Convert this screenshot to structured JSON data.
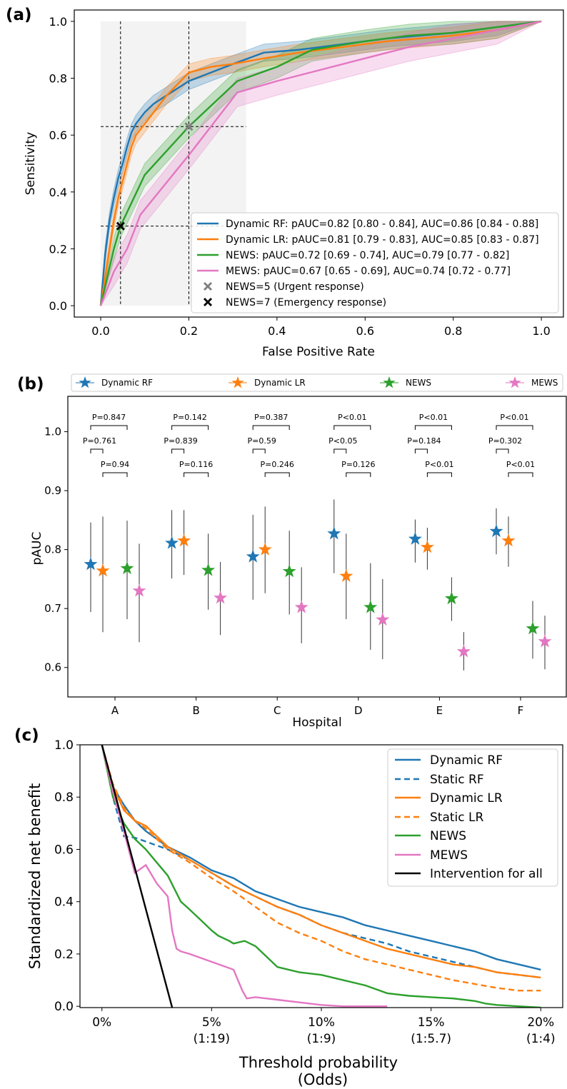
{
  "colors": {
    "dynamic_rf": "#1f77b4",
    "dynamic_lr": "#ff7f0e",
    "news": "#2ca02c",
    "mews": "#e377c2",
    "intervention": "#000000",
    "news5_marker": "#7f7f7f",
    "news7_marker": "#000000"
  },
  "chart_data": [
    {
      "panel_label": "(a)",
      "type": "line",
      "xlabel": "False Positive Rate",
      "ylabel": "Sensitivity",
      "xlim": [
        -0.06,
        1.05
      ],
      "ylim": [
        -0.04,
        1.04
      ],
      "xticks": [
        0.0,
        0.2,
        0.4,
        0.6,
        0.8,
        1.0
      ],
      "yticks": [
        0.0,
        0.2,
        0.4,
        0.6,
        0.8,
        1.0
      ],
      "xtick_labels": [
        "0.0",
        "0.2",
        "0.4",
        "0.6",
        "0.8",
        "1.0"
      ],
      "ytick_labels": [
        "0.0",
        "0.2",
        "0.4",
        "0.6",
        "0.8",
        "1.0"
      ],
      "legend_position": "lower-right",
      "shaded_region": {
        "x": [
          0.0,
          0.33
        ],
        "y": [
          0.0,
          1.0
        ]
      },
      "reference_lines": {
        "vertical": [
          0.045,
          0.2
        ],
        "horizontal": [
          0.28,
          0.63
        ]
      },
      "series": [
        {
          "name": "Dynamic RF: pAUC=0.82 [0.80 - 0.84], AUC=0.86 [0.84 - 0.88]",
          "key": "dynamic_rf",
          "x": [
            0,
            0.01,
            0.02,
            0.03,
            0.04,
            0.05,
            0.06,
            0.07,
            0.08,
            0.1,
            0.12,
            0.15,
            0.2,
            0.25,
            0.3,
            0.37,
            0.45,
            0.55,
            0.65,
            0.8,
            0.9,
            1.0
          ],
          "y": [
            0,
            0.18,
            0.3,
            0.38,
            0.45,
            0.5,
            0.56,
            0.61,
            0.64,
            0.68,
            0.71,
            0.74,
            0.79,
            0.82,
            0.85,
            0.89,
            0.9,
            0.92,
            0.94,
            0.96,
            0.98,
            1.0
          ],
          "band": 0.03
        },
        {
          "name": "Dynamic LR: pAUC=0.81 [0.79 - 0.83], AUC=0.85 [0.83 - 0.87]",
          "key": "dynamic_lr",
          "x": [
            0,
            0.01,
            0.02,
            0.03,
            0.04,
            0.05,
            0.06,
            0.07,
            0.08,
            0.1,
            0.12,
            0.15,
            0.2,
            0.25,
            0.3,
            0.37,
            0.45,
            0.55,
            0.65,
            0.8,
            0.9,
            1.0
          ],
          "y": [
            0,
            0.1,
            0.2,
            0.3,
            0.38,
            0.44,
            0.5,
            0.56,
            0.6,
            0.64,
            0.68,
            0.74,
            0.82,
            0.84,
            0.85,
            0.87,
            0.89,
            0.91,
            0.93,
            0.95,
            0.97,
            1.0
          ],
          "band": 0.03
        },
        {
          "name": "NEWS: pAUC=0.72 [0.69 - 0.74], AUC=0.79 [0.77 - 0.82]",
          "key": "news",
          "x": [
            0,
            0.03,
            0.045,
            0.1,
            0.2,
            0.31,
            0.4,
            0.48,
            0.6,
            0.7,
            0.8,
            0.9,
            1.0
          ],
          "y": [
            0,
            0.2,
            0.28,
            0.46,
            0.63,
            0.79,
            0.84,
            0.9,
            0.93,
            0.95,
            0.96,
            0.98,
            1.0
          ],
          "band": 0.04
        },
        {
          "name": "MEWS: pAUC=0.67 [0.65 - 0.69], AUC=0.74 [0.72 - 0.77]",
          "key": "mews",
          "x": [
            0,
            0.03,
            0.06,
            0.09,
            0.2,
            0.31,
            0.4,
            0.5,
            0.6,
            0.7,
            0.8,
            0.9,
            1.0
          ],
          "y": [
            0,
            0.12,
            0.2,
            0.32,
            0.53,
            0.75,
            0.79,
            0.83,
            0.87,
            0.91,
            0.94,
            0.97,
            1.0
          ],
          "band": 0.05
        }
      ],
      "markers": [
        {
          "name": "NEWS=5 (Urgent response)",
          "key": "news5_marker",
          "x": 0.2,
          "y": 0.63
        },
        {
          "name": "NEWS=7 (Emergency response)",
          "key": "news7_marker",
          "x": 0.045,
          "y": 0.28
        }
      ]
    },
    {
      "panel_label": "(b)",
      "type": "scatter",
      "xlabel": "Hospital",
      "ylabel": "pAUC",
      "categories": [
        "A",
        "B",
        "C",
        "D",
        "E",
        "F"
      ],
      "ylim": [
        0.55,
        1.06
      ],
      "yticks": [
        0.6,
        0.7,
        0.8,
        0.9,
        1.0
      ],
      "ytick_labels": [
        "0.6",
        "0.7",
        "0.8",
        "0.9",
        "1.0"
      ],
      "legend_position": "top",
      "series": [
        {
          "name": "Dynamic RF",
          "key": "dynamic_rf",
          "values": [
            0.775,
            0.811,
            0.788,
            0.827,
            0.818,
            0.831
          ],
          "lower": [
            0.694,
            0.751,
            0.715,
            0.76,
            0.778,
            0.792
          ],
          "upper": [
            0.846,
            0.867,
            0.859,
            0.885,
            0.851,
            0.87
          ]
        },
        {
          "name": "Dynamic LR",
          "key": "dynamic_lr",
          "values": [
            0.764,
            0.815,
            0.8,
            0.755,
            0.804,
            0.815
          ],
          "lower": [
            0.66,
            0.757,
            0.726,
            0.682,
            0.766,
            0.771
          ],
          "upper": [
            0.856,
            0.867,
            0.873,
            0.827,
            0.837,
            0.856
          ]
        },
        {
          "name": "NEWS",
          "key": "news",
          "values": [
            0.768,
            0.765,
            0.763,
            0.702,
            0.717,
            0.666
          ],
          "lower": [
            0.682,
            0.698,
            0.69,
            0.63,
            0.679,
            0.615
          ],
          "upper": [
            0.849,
            0.827,
            0.832,
            0.777,
            0.753,
            0.713
          ]
        },
        {
          "name": "MEWS",
          "key": "mews",
          "values": [
            0.73,
            0.718,
            0.702,
            0.681,
            0.627,
            0.644
          ],
          "lower": [
            0.643,
            0.655,
            0.641,
            0.614,
            0.595,
            0.597
          ],
          "upper": [
            0.81,
            0.779,
            0.77,
            0.75,
            0.66,
            0.688
          ]
        }
      ],
      "comparisons": [
        {
          "labels": [
            "P=0.847",
            "P=0.761",
            "P=0.94"
          ]
        },
        {
          "labels": [
            "P=0.142",
            "P=0.839",
            "P=0.116"
          ]
        },
        {
          "labels": [
            "P=0.387",
            "P=0.59",
            "P=0.246"
          ]
        },
        {
          "labels": [
            "P<0.01",
            "P<0.05",
            "P=0.126"
          ]
        },
        {
          "labels": [
            "P<0.01",
            "P=0.184",
            "P<0.01"
          ]
        },
        {
          "labels": [
            "P<0.01",
            "P=0.302",
            "P<0.01"
          ]
        }
      ]
    },
    {
      "panel_label": "(c)",
      "type": "line",
      "xlabel_line1": "Threshold probability",
      "xlabel_line2": "(Odds)",
      "ylabel": "Standardized net benefit",
      "xlim": [
        -0.01,
        0.21
      ],
      "ylim": [
        -0.005,
        1.0
      ],
      "xticks": [
        0,
        0.05,
        0.1,
        0.15,
        0.2
      ],
      "xtick_labels": [
        "0%",
        "5%",
        "10%",
        "15%",
        "20%"
      ],
      "xtick_odds": [
        "",
        "(1:19)",
        "(1:9)",
        "(1:5.7)",
        "(1:4)"
      ],
      "yticks": [
        0.0,
        0.2,
        0.4,
        0.6,
        0.8,
        1.0
      ],
      "ytick_labels": [
        "0.0",
        "0.2",
        "0.4",
        "0.6",
        "0.8",
        "1.0"
      ],
      "legend_position": "top-right",
      "series": [
        {
          "name": "Dynamic RF",
          "key": "dynamic_rf",
          "dash": false,
          "x": [
            0,
            0.005,
            0.01,
            0.015,
            0.02,
            0.03,
            0.04,
            0.05,
            0.06,
            0.07,
            0.08,
            0.09,
            0.1,
            0.11,
            0.12,
            0.13,
            0.14,
            0.15,
            0.16,
            0.17,
            0.18,
            0.19,
            0.2
          ],
          "y": [
            1.0,
            0.84,
            0.77,
            0.71,
            0.67,
            0.61,
            0.57,
            0.52,
            0.49,
            0.44,
            0.41,
            0.38,
            0.36,
            0.34,
            0.31,
            0.29,
            0.27,
            0.25,
            0.23,
            0.21,
            0.18,
            0.16,
            0.14
          ]
        },
        {
          "name": "Static RF",
          "key": "dynamic_rf",
          "dash": true,
          "x": [
            0,
            0.005,
            0.01,
            0.015,
            0.02,
            0.03,
            0.04,
            0.05,
            0.06,
            0.07,
            0.08,
            0.09,
            0.1,
            0.11,
            0.12,
            0.13,
            0.14,
            0.15,
            0.16,
            0.17,
            0.18,
            0.19,
            0.2
          ],
          "y": [
            1.0,
            0.8,
            0.65,
            0.645,
            0.63,
            0.6,
            0.56,
            0.51,
            0.46,
            0.42,
            0.38,
            0.35,
            0.31,
            0.28,
            0.26,
            0.24,
            0.21,
            0.19,
            0.17,
            0.15,
            0.13,
            0.12,
            0.11
          ]
        },
        {
          "name": "Dynamic LR",
          "key": "dynamic_lr",
          "dash": false,
          "x": [
            0,
            0.005,
            0.01,
            0.015,
            0.02,
            0.03,
            0.04,
            0.05,
            0.06,
            0.07,
            0.08,
            0.09,
            0.1,
            0.11,
            0.12,
            0.13,
            0.14,
            0.15,
            0.16,
            0.17,
            0.18,
            0.19,
            0.2
          ],
          "y": [
            1.0,
            0.84,
            0.75,
            0.71,
            0.69,
            0.61,
            0.56,
            0.51,
            0.46,
            0.42,
            0.38,
            0.35,
            0.31,
            0.28,
            0.25,
            0.22,
            0.2,
            0.18,
            0.16,
            0.15,
            0.13,
            0.12,
            0.11
          ]
        },
        {
          "name": "Static LR",
          "key": "dynamic_lr",
          "dash": true,
          "x": [
            0,
            0.005,
            0.01,
            0.015,
            0.02,
            0.03,
            0.04,
            0.05,
            0.06,
            0.07,
            0.08,
            0.09,
            0.1,
            0.11,
            0.12,
            0.13,
            0.14,
            0.15,
            0.16,
            0.17,
            0.18,
            0.19,
            0.2
          ],
          "y": [
            1.0,
            0.85,
            0.76,
            0.71,
            0.68,
            0.6,
            0.55,
            0.49,
            0.44,
            0.38,
            0.32,
            0.28,
            0.25,
            0.21,
            0.18,
            0.16,
            0.14,
            0.12,
            0.1,
            0.085,
            0.07,
            0.06,
            0.06
          ]
        },
        {
          "name": "NEWS",
          "key": "news",
          "dash": false,
          "x": [
            0,
            0.005,
            0.01,
            0.015,
            0.02,
            0.025,
            0.03,
            0.033,
            0.036,
            0.04,
            0.045,
            0.05,
            0.053,
            0.058,
            0.06,
            0.065,
            0.07,
            0.075,
            0.08,
            0.09,
            0.1,
            0.11,
            0.12,
            0.13,
            0.14,
            0.15,
            0.16,
            0.17,
            0.175,
            0.18,
            0.19,
            0.2
          ],
          "y": [
            1.0,
            0.8,
            0.7,
            0.64,
            0.6,
            0.55,
            0.5,
            0.45,
            0.4,
            0.37,
            0.33,
            0.29,
            0.27,
            0.25,
            0.24,
            0.25,
            0.23,
            0.19,
            0.15,
            0.13,
            0.12,
            0.1,
            0.08,
            0.05,
            0.04,
            0.035,
            0.03,
            0.02,
            0.01,
            0.005,
            0.0,
            -0.005
          ]
        },
        {
          "name": "MEWS",
          "key": "mews",
          "dash": false,
          "x": [
            0,
            0.005,
            0.01,
            0.015,
            0.02,
            0.025,
            0.03,
            0.032,
            0.034,
            0.036,
            0.04,
            0.05,
            0.06,
            0.062,
            0.064,
            0.066,
            0.07,
            0.08,
            0.09,
            0.1,
            0.11,
            0.12,
            0.13
          ],
          "y": [
            1.0,
            0.82,
            0.67,
            0.51,
            0.54,
            0.47,
            0.42,
            0.29,
            0.22,
            0.21,
            0.2,
            0.17,
            0.14,
            0.1,
            0.06,
            0.03,
            0.035,
            0.025,
            0.015,
            0.005,
            0.0,
            0.0,
            0.0
          ]
        },
        {
          "name": "Intervention for all",
          "key": "intervention",
          "dash": false,
          "x": [
            0,
            0.032
          ],
          "y": [
            1.0,
            -0.005
          ]
        }
      ]
    }
  ]
}
